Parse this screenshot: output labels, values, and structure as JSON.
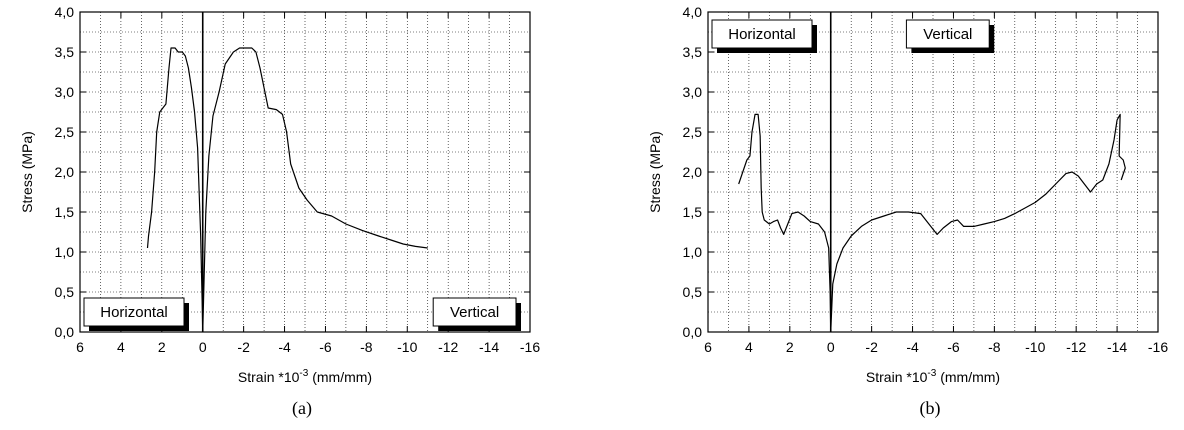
{
  "chart_data": [
    {
      "type": "line",
      "caption": "(a)",
      "ylabel": "Stress (MPa)",
      "xlabel": "Strain *10",
      "xlabel_exp": "-3",
      "xlabel_unit": " (mm/mm)",
      "xlim": [
        6,
        -16
      ],
      "ylim": [
        0,
        4.0
      ],
      "xticks": [
        6,
        4,
        2,
        0,
        -2,
        -4,
        -6,
        -8,
        -10,
        -12,
        -14,
        -16
      ],
      "xtick_labels": [
        "6",
        "4",
        "2",
        "0",
        "-2",
        "-4",
        "-6",
        "-8",
        "-10",
        "-12",
        "-14",
        "-16"
      ],
      "yticks": [
        0,
        0.5,
        1.0,
        1.5,
        2.0,
        2.5,
        3.0,
        3.5,
        4.0
      ],
      "ytick_labels": [
        "0,0",
        "0,5",
        "1,0",
        "1,5",
        "2,0",
        "2,5",
        "3,0",
        "3,5",
        "4,0"
      ],
      "grid": true,
      "annotations": [
        {
          "text": "Horizontal",
          "position": "bottom-left"
        },
        {
          "text": "Vertical",
          "position": "bottom-right"
        }
      ],
      "series": [
        {
          "points": [
            [
              2.7,
              1.05
            ],
            [
              2.65,
              1.2
            ],
            [
              2.5,
              1.5
            ],
            [
              2.35,
              2.0
            ],
            [
              2.25,
              2.5
            ],
            [
              2.1,
              2.75
            ],
            [
              1.95,
              2.8
            ],
            [
              1.8,
              2.85
            ],
            [
              1.65,
              3.3
            ],
            [
              1.55,
              3.55
            ],
            [
              1.35,
              3.55
            ],
            [
              1.2,
              3.5
            ],
            [
              1.0,
              3.5
            ],
            [
              0.85,
              3.45
            ],
            [
              0.7,
              3.3
            ],
            [
              0.55,
              3.05
            ],
            [
              0.4,
              2.75
            ],
            [
              0.25,
              2.3
            ],
            [
              0.1,
              1.2
            ],
            [
              0.03,
              0.4
            ],
            [
              0.0,
              0.0
            ]
          ]
        },
        {
          "points": [
            [
              0.0,
              0.0
            ],
            [
              -0.05,
              0.5
            ],
            [
              -0.15,
              1.5
            ],
            [
              -0.3,
              2.2
            ],
            [
              -0.5,
              2.7
            ],
            [
              -0.8,
              3.0
            ],
            [
              -1.1,
              3.35
            ],
            [
              -1.5,
              3.5
            ],
            [
              -1.8,
              3.55
            ],
            [
              -2.1,
              3.55
            ],
            [
              -2.4,
              3.55
            ],
            [
              -2.6,
              3.5
            ],
            [
              -2.8,
              3.3
            ],
            [
              -3.0,
              3.05
            ],
            [
              -3.2,
              2.8
            ],
            [
              -3.6,
              2.78
            ],
            [
              -3.9,
              2.72
            ],
            [
              -4.1,
              2.5
            ],
            [
              -4.3,
              2.1
            ],
            [
              -4.7,
              1.8
            ],
            [
              -5.1,
              1.65
            ],
            [
              -5.6,
              1.5
            ],
            [
              -6.3,
              1.45
            ],
            [
              -7.0,
              1.35
            ],
            [
              -7.8,
              1.27
            ],
            [
              -8.6,
              1.2
            ],
            [
              -9.2,
              1.15
            ],
            [
              -9.8,
              1.1
            ],
            [
              -10.4,
              1.07
            ],
            [
              -11.0,
              1.05
            ]
          ]
        }
      ]
    },
    {
      "type": "line",
      "caption": "(b)",
      "ylabel": "Stress (MPa)",
      "xlabel": "Strain *10",
      "xlabel_exp": "-3",
      "xlabel_unit": " (mm/mm)",
      "xlim": [
        6,
        -16
      ],
      "ylim": [
        0,
        4.0
      ],
      "xticks": [
        6,
        4,
        2,
        0,
        -2,
        -4,
        -6,
        -8,
        -10,
        -12,
        -14,
        -16
      ],
      "xtick_labels": [
        "6",
        "4",
        "2",
        "0",
        "-2",
        "-4",
        "-6",
        "-8",
        "-10",
        "-12",
        "-14",
        "-16"
      ],
      "yticks": [
        0,
        0.5,
        1.0,
        1.5,
        2.0,
        2.5,
        3.0,
        3.5,
        4.0
      ],
      "ytick_labels": [
        "0,0",
        "0,5",
        "1,0",
        "1,5",
        "2,0",
        "2,5",
        "3,0",
        "3,5",
        "4,0"
      ],
      "grid": true,
      "annotations": [
        {
          "text": "Horizontal",
          "position": "top-left"
        },
        {
          "text": "Vertical",
          "position": "top-center"
        }
      ],
      "series": [
        {
          "points": [
            [
              4.5,
              1.85
            ],
            [
              4.3,
              2.0
            ],
            [
              4.1,
              2.15
            ],
            [
              3.95,
              2.2
            ],
            [
              3.85,
              2.5
            ],
            [
              3.7,
              2.72
            ],
            [
              3.55,
              2.72
            ],
            [
              3.45,
              2.45
            ],
            [
              3.4,
              1.8
            ],
            [
              3.35,
              1.5
            ],
            [
              3.25,
              1.4
            ],
            [
              3.0,
              1.35
            ],
            [
              2.8,
              1.38
            ],
            [
              2.6,
              1.4
            ],
            [
              2.45,
              1.3
            ],
            [
              2.3,
              1.22
            ],
            [
              2.1,
              1.35
            ],
            [
              1.9,
              1.48
            ],
            [
              1.6,
              1.5
            ],
            [
              1.3,
              1.45
            ],
            [
              1.0,
              1.38
            ],
            [
              0.6,
              1.35
            ],
            [
              0.3,
              1.25
            ],
            [
              0.1,
              1.05
            ],
            [
              0.03,
              0.5
            ],
            [
              0.0,
              0.0
            ]
          ]
        },
        {
          "points": [
            [
              0.0,
              0.0
            ],
            [
              -0.1,
              0.6
            ],
            [
              -0.3,
              0.85
            ],
            [
              -0.6,
              1.05
            ],
            [
              -1.0,
              1.2
            ],
            [
              -1.5,
              1.32
            ],
            [
              -2.0,
              1.4
            ],
            [
              -2.6,
              1.45
            ],
            [
              -3.2,
              1.5
            ],
            [
              -3.8,
              1.5
            ],
            [
              -4.4,
              1.48
            ],
            [
              -4.8,
              1.35
            ],
            [
              -5.2,
              1.22
            ],
            [
              -5.5,
              1.3
            ],
            [
              -5.9,
              1.38
            ],
            [
              -6.2,
              1.4
            ],
            [
              -6.5,
              1.32
            ],
            [
              -7.0,
              1.32
            ],
            [
              -7.5,
              1.35
            ],
            [
              -8.0,
              1.38
            ],
            [
              -8.5,
              1.42
            ],
            [
              -9.0,
              1.48
            ],
            [
              -9.5,
              1.55
            ],
            [
              -10.0,
              1.62
            ],
            [
              -10.5,
              1.72
            ],
            [
              -11.0,
              1.85
            ],
            [
              -11.5,
              1.98
            ],
            [
              -11.8,
              2.0
            ],
            [
              -12.1,
              1.95
            ],
            [
              -12.4,
              1.85
            ],
            [
              -12.7,
              1.75
            ],
            [
              -13.0,
              1.85
            ],
            [
              -13.3,
              1.9
            ],
            [
              -13.6,
              2.1
            ],
            [
              -13.85,
              2.4
            ],
            [
              -14.0,
              2.65
            ],
            [
              -14.15,
              2.72
            ],
            [
              -14.1,
              2.2
            ],
            [
              -14.3,
              2.15
            ],
            [
              -14.4,
              2.05
            ],
            [
              -14.2,
              1.9
            ]
          ]
        }
      ]
    }
  ]
}
